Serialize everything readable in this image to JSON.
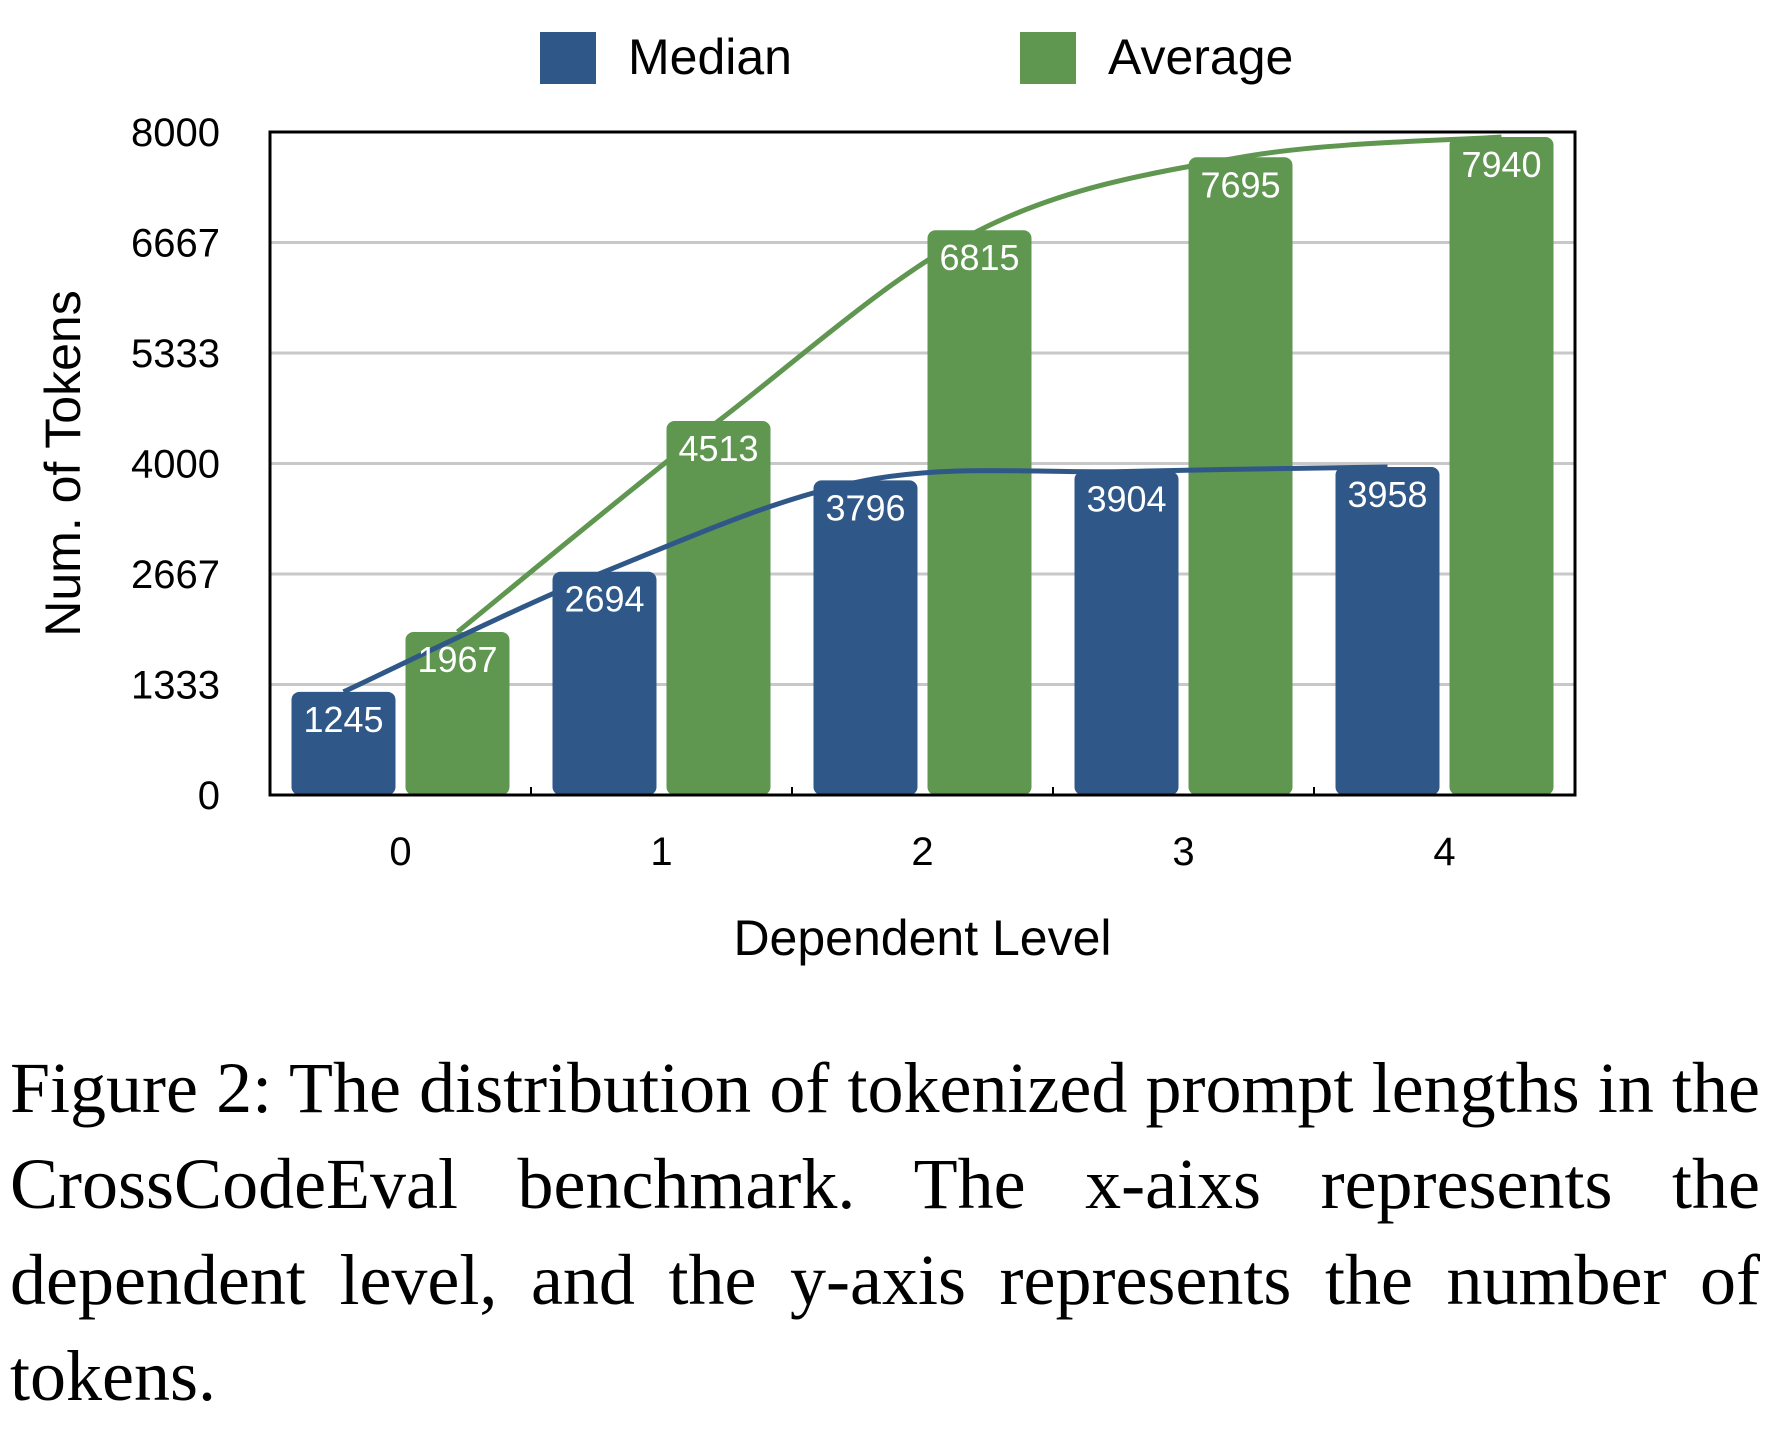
{
  "chart_data": {
    "type": "bar",
    "categories": [
      "0",
      "1",
      "2",
      "3",
      "4"
    ],
    "series": [
      {
        "name": "Median",
        "values": [
          1245,
          2694,
          3796,
          3904,
          3958
        ],
        "color": "#2f5889",
        "trend_line": true
      },
      {
        "name": "Average",
        "values": [
          1967,
          4513,
          6815,
          7695,
          7940
        ],
        "color": "#5f9650",
        "trend_line": true
      }
    ],
    "data_labels": true,
    "xlabel": "Dependent Level",
    "ylabel": "Num. of Tokens",
    "ylim": [
      0,
      8000
    ],
    "yticks": [
      0,
      1333,
      2667,
      4000,
      5333,
      6667,
      8000
    ],
    "grid": "horizontal",
    "legend_position": "top-center"
  },
  "caption": "Figure 2: The distribution of tokenized prompt lengths in the CrossCodeEval benchmark. The x-aixs represents the dependent level, and the y-axis represents the number of tokens."
}
